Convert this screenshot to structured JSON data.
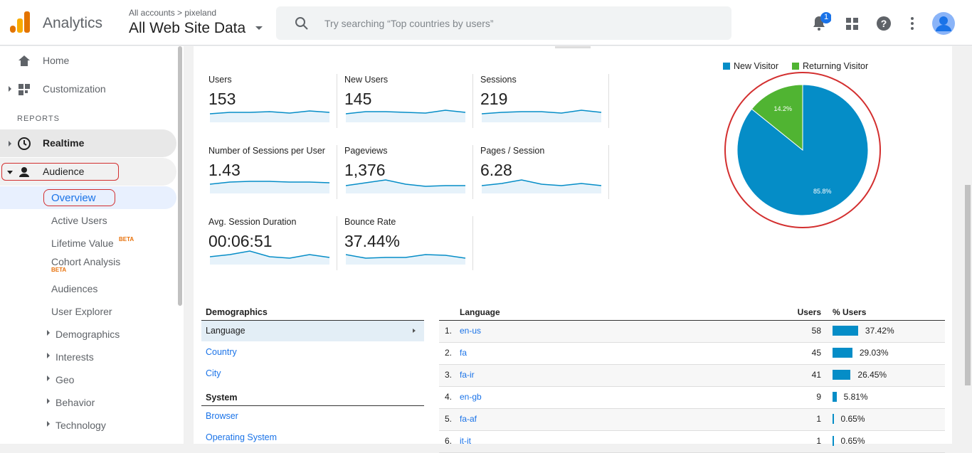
{
  "header": {
    "product": "Analytics",
    "breadcrumb": "All accounts > pixeland",
    "view": "All Web Site Data",
    "search_placeholder": "Try searching “Top countries by users”",
    "notification_count": "1"
  },
  "sidebar": {
    "items": [
      "Home",
      "Customization"
    ],
    "section": "REPORTS",
    "reports": [
      "Realtime",
      "Audience"
    ],
    "audience_items": [
      "Overview",
      "Active Users",
      "Lifetime Value",
      "Cohort Analysis",
      "Audiences",
      "User Explorer",
      "Demographics",
      "Interests",
      "Geo",
      "Behavior",
      "Technology"
    ],
    "beta": "BETA"
  },
  "metrics": [
    {
      "label": "Users",
      "value": "153"
    },
    {
      "label": "New Users",
      "value": "145"
    },
    {
      "label": "Sessions",
      "value": "219"
    },
    {
      "label": "Number of Sessions per User",
      "value": "1.43"
    },
    {
      "label": "Pageviews",
      "value": "1,376"
    },
    {
      "label": "Pages / Session",
      "value": "6.28"
    },
    {
      "label": "Avg. Session Duration",
      "value": "00:06:51"
    },
    {
      "label": "Bounce Rate",
      "value": "37.44%"
    }
  ],
  "chart_data": {
    "type": "pie",
    "categories": [
      "New Visitor",
      "Returning Visitor"
    ],
    "values": [
      85.8,
      14.2
    ],
    "value_labels": [
      "85.8%",
      "14.2%"
    ],
    "colors": [
      "#058dc7",
      "#50b432"
    ]
  },
  "demographics": {
    "title": "Demographics",
    "items": [
      "Language",
      "Country",
      "City"
    ],
    "system_title": "System",
    "system_items": [
      "Browser",
      "Operating System"
    ]
  },
  "table": {
    "headers": [
      "Language",
      "Users",
      "% Users"
    ],
    "rows": [
      {
        "rank": "1.",
        "name": "en-us",
        "users": 58,
        "pct": 37.42,
        "pct_label": "37.42%"
      },
      {
        "rank": "2.",
        "name": "fa",
        "users": 45,
        "pct": 29.03,
        "pct_label": "29.03%"
      },
      {
        "rank": "3.",
        "name": "fa-ir",
        "users": 41,
        "pct": 26.45,
        "pct_label": "26.45%"
      },
      {
        "rank": "4.",
        "name": "en-gb",
        "users": 9,
        "pct": 5.81,
        "pct_label": "5.81%"
      },
      {
        "rank": "5.",
        "name": "fa-af",
        "users": 1,
        "pct": 0.65,
        "pct_label": "0.65%"
      },
      {
        "rank": "6.",
        "name": "it-it",
        "users": 1,
        "pct": 0.65,
        "pct_label": "0.65%"
      }
    ]
  }
}
